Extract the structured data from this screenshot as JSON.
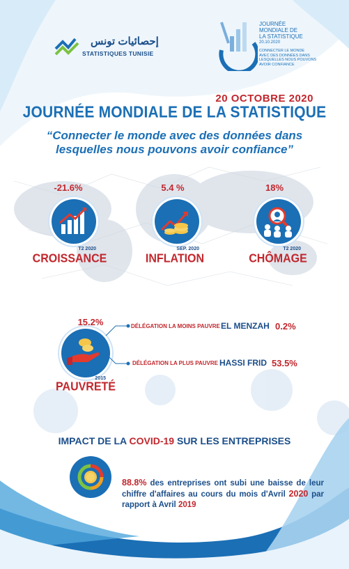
{
  "colors": {
    "blue": "#1b6fb5",
    "red": "#c1272d",
    "navy": "#1b4e8a",
    "light_blue": "#cfe3f5"
  },
  "header": {
    "left_logo_arabic": "إحصائيات تونس",
    "left_logo_name": "STATISTIQUES TUNISIE",
    "right_logo_lines": [
      "JOURNÉE",
      "MONDIALE DE",
      "LA STATISTIQUE",
      "20.10.2020"
    ],
    "right_logo_slogan_lines": [
      "CONNECTER LE MONDE",
      "AVEC DES DONNÉES DANS",
      "LESQUELLES NOUS POUVONS",
      "AVOIR CONFIANCE"
    ]
  },
  "date": "20 OCTOBRE 2020",
  "title": "JOURNÉE MONDIALE DE LA STATISTIQUE",
  "quote_lines": [
    "“Connecter le monde avec des données dans",
    "lesquelles nous pouvons avoir confiance”"
  ],
  "kpis": [
    {
      "value": "-21.6%",
      "period": "T2 2020",
      "label": "CROISSANCE",
      "icon": "growth-chart-icon"
    },
    {
      "value": "5.4 %",
      "period": "SEP. 2020",
      "label": "INFLATION",
      "icon": "coins-arrow-icon"
    },
    {
      "value": "18%",
      "period": "T2 2020",
      "label": "CHÔMAGE",
      "icon": "magnifier-people-icon"
    }
  ],
  "poverty": {
    "value": "15.2%",
    "year": "2015",
    "label": "PAUVRETÉ",
    "icon": "hand-coins-icon",
    "least_poor_label": "DÉLÉGATION LA MOINS PAUVRE",
    "least_poor_name": "EL MENZAH",
    "least_poor_value": "0.2%",
    "most_poor_label": "DÉLÉGATION LA PLUS PAUVRE",
    "most_poor_name": "HASSI FRID",
    "most_poor_value": "53.5%"
  },
  "impact": {
    "title_before": "IMPACT DE LA",
    "title_highlight": "COVID-19",
    "title_after": "SUR LES ENTREPRISES",
    "percent": "88.8%",
    "text_1": " des entreprises ont subi une baisse de leur chiffre d'affaires au cours du mois d'Avril ",
    "year_1": "2020",
    "text_2": " par rapport à Avril ",
    "year_2": "2019",
    "icon": "coin-cycle-icon"
  }
}
